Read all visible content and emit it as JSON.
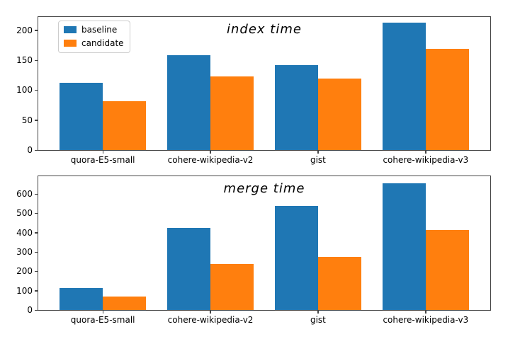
{
  "figure": {
    "background": "#ffffff",
    "accent_blue": "#1f77b4",
    "accent_orange": "#ff7f0e"
  },
  "legend": {
    "position": "upper left",
    "items": [
      {
        "label": "baseline",
        "color": "#1f77b4"
      },
      {
        "label": "candidate",
        "color": "#ff7f0e"
      }
    ]
  },
  "chart_data": [
    {
      "type": "bar",
      "title": "index time",
      "categories": [
        "quora-E5-small",
        "cohere-wikipedia-v2",
        "gist",
        "cohere-wikipedia-v3"
      ],
      "series": [
        {
          "name": "baseline",
          "color": "#1f77b4",
          "values": [
            112,
            158,
            142,
            212
          ]
        },
        {
          "name": "candidate",
          "color": "#ff7f0e",
          "values": [
            82,
            123,
            119,
            169
          ]
        }
      ],
      "yticks": [
        0,
        50,
        100,
        150,
        200
      ],
      "ylim": [
        0,
        222
      ],
      "xlim": [
        -0.6,
        3.6
      ],
      "bar_width": 0.4,
      "grid": false,
      "legend_position": "upper left",
      "xlabel": "",
      "ylabel": ""
    },
    {
      "type": "bar",
      "title": "merge time",
      "categories": [
        "quora-E5-small",
        "cohere-wikipedia-v2",
        "gist",
        "cohere-wikipedia-v3"
      ],
      "series": [
        {
          "name": "baseline",
          "color": "#1f77b4",
          "values": [
            112,
            425,
            537,
            654
          ]
        },
        {
          "name": "candidate",
          "color": "#ff7f0e",
          "values": [
            70,
            238,
            276,
            414
          ]
        }
      ],
      "yticks": [
        0,
        100,
        200,
        300,
        400,
        500,
        600
      ],
      "ylim": [
        0,
        692
      ],
      "xlim": [
        -0.6,
        3.6
      ],
      "bar_width": 0.4,
      "grid": false,
      "legend_position": "none",
      "xlabel": "",
      "ylabel": ""
    }
  ]
}
